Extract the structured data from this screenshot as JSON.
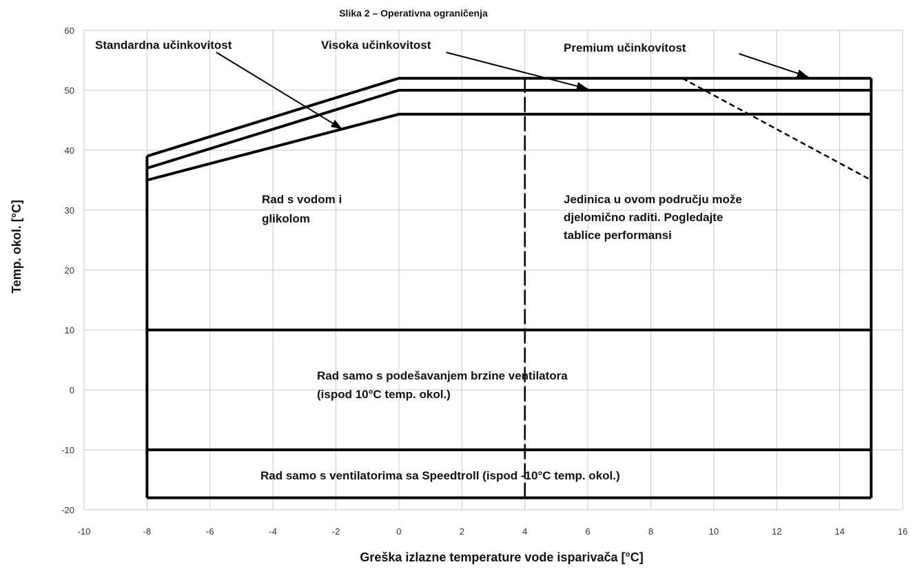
{
  "chart_data": {
    "type": "line",
    "title": "Slika 2 – Operativna ograničenja",
    "xlabel": "Greška izlazne temperature vode isparivača [°C]",
    "ylabel": "Temp. okol. [°C]",
    "xlim": [
      -10,
      16
    ],
    "ylim": [
      -20,
      60
    ],
    "x_ticks": [
      -10,
      -8,
      -6,
      -4,
      -2,
      0,
      2,
      4,
      6,
      8,
      10,
      12,
      14,
      16
    ],
    "y_ticks": [
      -20,
      -10,
      0,
      10,
      20,
      30,
      40,
      50,
      60
    ],
    "grid": true,
    "series": [
      {
        "name": "Standardna učinkovitost",
        "x": [
          -8,
          0,
          15
        ],
        "y": [
          35,
          46,
          46
        ]
      },
      {
        "name": "Visoka učinkovitost",
        "x": [
          -8,
          0,
          15
        ],
        "y": [
          37,
          50,
          50
        ]
      },
      {
        "name": "Premium učinkovitost",
        "x": [
          -8,
          0,
          15
        ],
        "y": [
          39,
          52,
          52
        ]
      }
    ],
    "partial_operation_limit": {
      "style": "dashed",
      "x": [
        9,
        15
      ],
      "y": [
        52,
        35
      ]
    },
    "vertical_divider": {
      "style": "long-dash",
      "x": 4,
      "y": [
        -18,
        52
      ]
    },
    "boundaries": {
      "left_x": -8,
      "right_x": 15,
      "bottom_y": -18,
      "fan_speed_limit_y": 10,
      "speedtroll_limit_y": -10
    },
    "annotations": {
      "water_glycol": [
        "Rad s vodom i",
        "glikolom"
      ],
      "partial": [
        "Jedinica u ovom području može",
        "djelomično raditi. Pogledajte",
        "tablice performansi"
      ],
      "fan_speed": [
        "Rad samo s podešavanjem brzine ventilatora",
        "(ispod 10°C temp. okol.)"
      ],
      "speedtroll": "Rad samo s ventilatorima sa Speedtroll (ispod -10°C temp. okol.)"
    }
  }
}
